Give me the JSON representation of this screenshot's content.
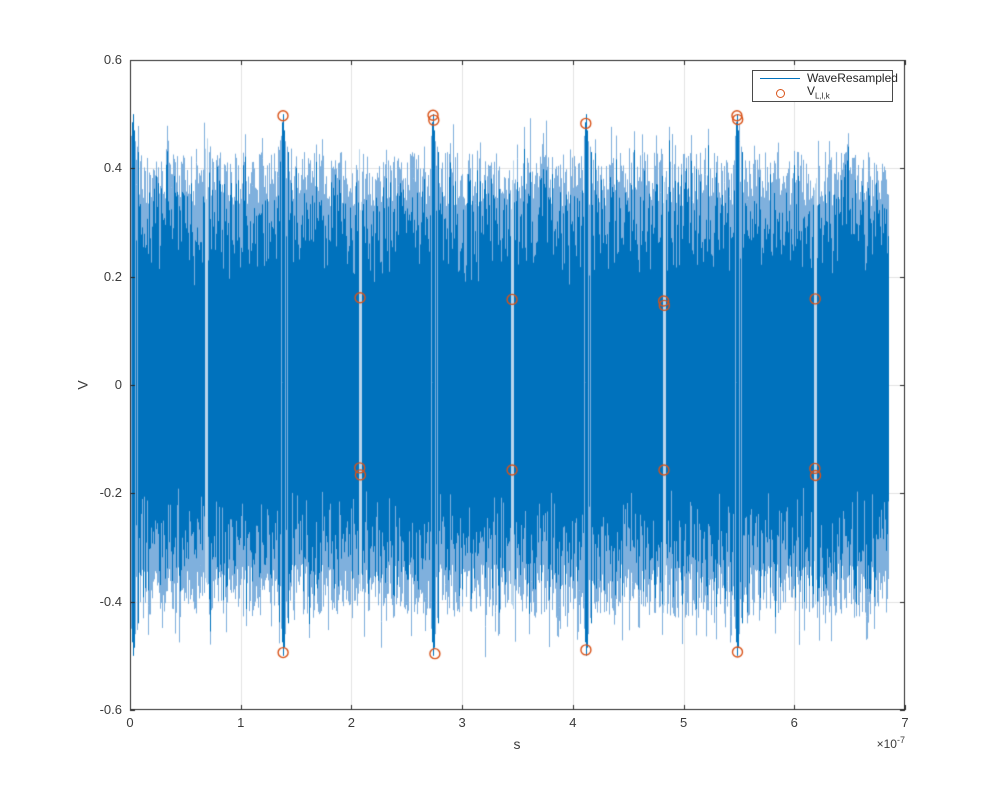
{
  "figure": {
    "background_color": "#ffffff",
    "axes_background": "#ffffff",
    "axis_color": "#262626",
    "grid_color": "#e4e4e4",
    "grid_on": true
  },
  "axes": {
    "xlabel": "s",
    "ylabel": "V",
    "x_exponent_prefix": "×10",
    "x_exponent": "-7",
    "xtick_labels": [
      "0",
      "1",
      "2",
      "3",
      "4",
      "5",
      "6",
      "7"
    ],
    "ytick_labels": [
      "-0.6",
      "-0.4",
      "-0.2",
      "0",
      "0.2",
      "0.4",
      "0.6"
    ]
  },
  "legend": {
    "position": "northeast",
    "entries": [
      {
        "label": "WaveResampled",
        "swatch": "line",
        "color": "#0072BD"
      },
      {
        "label_main": "V",
        "label_sub": "L,l,k",
        "swatch": "circle-marker",
        "color": "#D95319"
      }
    ]
  },
  "chart_data": {
    "type": "line",
    "title": "",
    "xlabel": "s",
    "ylabel": "V",
    "xlim": [
      0,
      7
    ],
    "ylim": [
      -0.6,
      0.6
    ],
    "x_unit_exponent": "1e-7 seconds",
    "xticks": [
      0,
      1,
      2,
      3,
      4,
      5,
      6,
      7
    ],
    "yticks": [
      -0.6,
      -0.4,
      -0.2,
      0,
      0.2,
      0.4,
      0.6
    ],
    "grid": true,
    "legend_position": "northeast",
    "series": [
      {
        "name": "WaveResampled",
        "type": "dense-noise-waveform",
        "color": "#0072BD",
        "light_color": "#7fb0dd",
        "gap_color": "#b9d5ec",
        "x_range": [
          0.01,
          6.85
        ],
        "band_amplitude": 0.42,
        "spike_amplitude": 0.5,
        "spike_x": [
          0.025,
          1.382,
          2.74,
          4.117,
          5.485
        ],
        "gap_x": [
          0.69,
          1.38,
          2.08,
          2.74,
          3.45,
          4.12,
          4.82,
          5.48,
          6.19
        ]
      },
      {
        "name": "V_L,l,k",
        "type": "scatter",
        "marker": "circle",
        "marker_size_px": 5,
        "color": "#D95319",
        "points": [
          [
            1.382,
            0.497
          ],
          [
            2.737,
            0.498
          ],
          [
            2.744,
            0.489
          ],
          [
            4.117,
            0.483
          ],
          [
            5.482,
            0.497
          ],
          [
            5.489,
            0.49
          ],
          [
            2.078,
            0.161
          ],
          [
            3.451,
            0.158
          ],
          [
            4.82,
            0.155
          ],
          [
            4.826,
            0.147
          ],
          [
            6.189,
            0.159
          ],
          [
            2.075,
            -0.153
          ],
          [
            2.081,
            -0.166
          ],
          [
            3.451,
            -0.157
          ],
          [
            4.823,
            -0.157
          ],
          [
            6.186,
            -0.154
          ],
          [
            6.192,
            -0.167
          ],
          [
            1.383,
            -0.494
          ],
          [
            2.754,
            -0.496
          ],
          [
            4.118,
            -0.489
          ],
          [
            5.487,
            -0.493
          ]
        ]
      }
    ]
  },
  "plot_geometry_note": "plot box left 130, top 60, right 905, bottom 710"
}
